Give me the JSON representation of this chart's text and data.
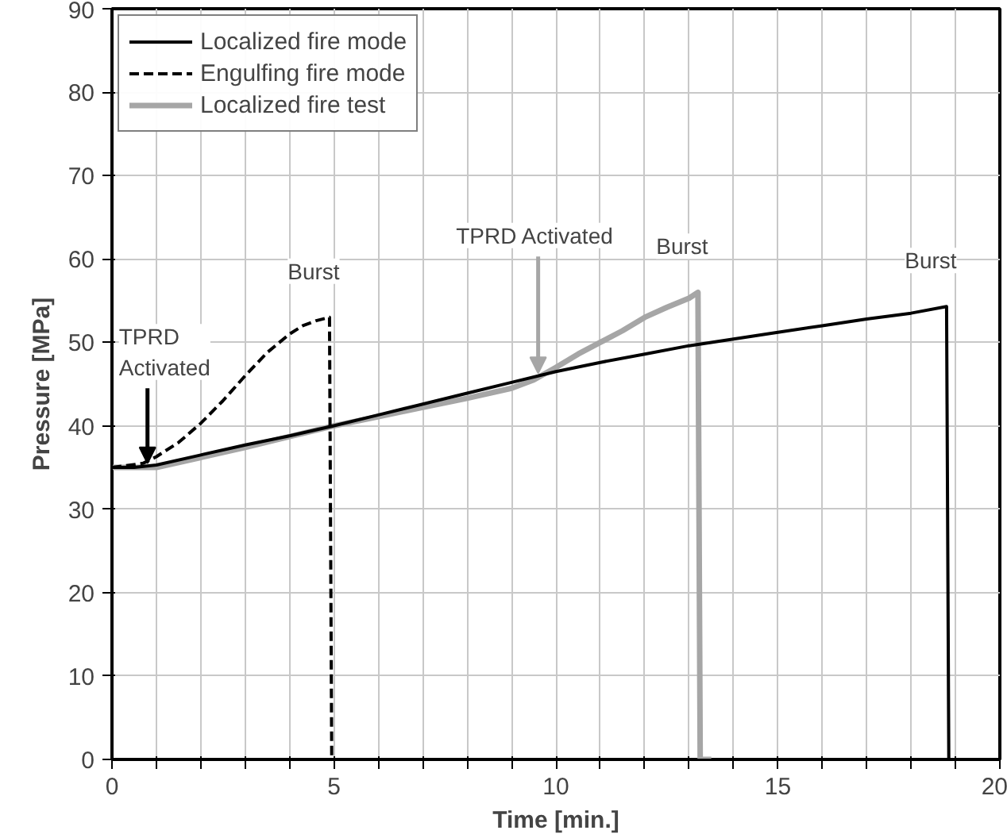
{
  "chart_data": {
    "type": "line",
    "xlabel": "Time [min.]",
    "ylabel": "Pressure [MPa]",
    "xlim": [
      0,
      20
    ],
    "ylim": [
      0,
      90
    ],
    "xticks": [
      0,
      {
        "value": 1,
        "label": null
      },
      {
        "value": 2,
        "label": null
      },
      {
        "value": 3,
        "label": null
      },
      {
        "value": 4,
        "label": null
      },
      5,
      {
        "value": 6,
        "label": null
      },
      {
        "value": 7,
        "label": null
      },
      {
        "value": 8,
        "label": null
      },
      {
        "value": 9,
        "label": null
      },
      10,
      {
        "value": 11,
        "label": null
      },
      {
        "value": 12,
        "label": null
      },
      {
        "value": 13,
        "label": null
      },
      {
        "value": 14,
        "label": null
      },
      15,
      {
        "value": 16,
        "label": null
      },
      {
        "value": 17,
        "label": null
      },
      {
        "value": 18,
        "label": null
      },
      {
        "value": 19,
        "label": null
      },
      20
    ],
    "yticks": [
      0,
      10,
      20,
      30,
      40,
      50,
      60,
      70,
      80,
      90
    ],
    "grid": true,
    "legend": "top left",
    "series": [
      {
        "name": "Localized fire mode",
        "color": "#000000",
        "line_style": "solid",
        "x": [
          0,
          0.5,
          1,
          2,
          3,
          4,
          5,
          6,
          7,
          8,
          9,
          10,
          11,
          12,
          13,
          14,
          15,
          16,
          17,
          18,
          18.8,
          18.85
        ],
        "values": [
          35,
          35,
          35.3,
          36.5,
          37.7,
          38.8,
          40,
          41.3,
          42.6,
          43.9,
          45.2,
          46.5,
          47.6,
          48.6,
          49.6,
          50.4,
          51.2,
          52,
          52.8,
          53.5,
          54.3,
          0
        ]
      },
      {
        "name": "Engulfing fire mode",
        "color": "#000000",
        "line_style": "dashed",
        "x": [
          0,
          0.7,
          1,
          1.5,
          2,
          2.5,
          3,
          3.5,
          4,
          4.3,
          4.6,
          4.9,
          4.95
        ],
        "values": [
          35,
          35.5,
          36.3,
          38,
          40.3,
          43,
          46,
          48.8,
          51,
          52,
          52.6,
          53,
          0
        ]
      },
      {
        "name": "Localized fire test",
        "color": "#a6a6a6",
        "line_style": "solid",
        "x": [
          0,
          1,
          2,
          3,
          4,
          5,
          6,
          7,
          8,
          9,
          9.5,
          10,
          10.5,
          11,
          11.5,
          12,
          12.5,
          13,
          13.2,
          13.25,
          13.5
        ],
        "values": [
          35,
          35,
          36.2,
          37.4,
          38.7,
          40,
          41.1,
          42.2,
          43.3,
          44.5,
          45.5,
          47,
          48.6,
          50,
          51.4,
          53,
          54.2,
          55.3,
          56,
          0,
          0
        ]
      }
    ],
    "annotations": [
      {
        "text": "TPRD\nActivated",
        "x": 0.8,
        "y": 35.5
      },
      {
        "text": "TPRD  Activated",
        "x": 9.6,
        "y": 46.3
      },
      {
        "text": "Burst",
        "x": 4.9,
        "y": 53
      },
      {
        "text": "Burst",
        "x": 13.2,
        "y": 56
      },
      {
        "text": "Burst",
        "x": 18.8,
        "y": 54.3
      }
    ]
  }
}
